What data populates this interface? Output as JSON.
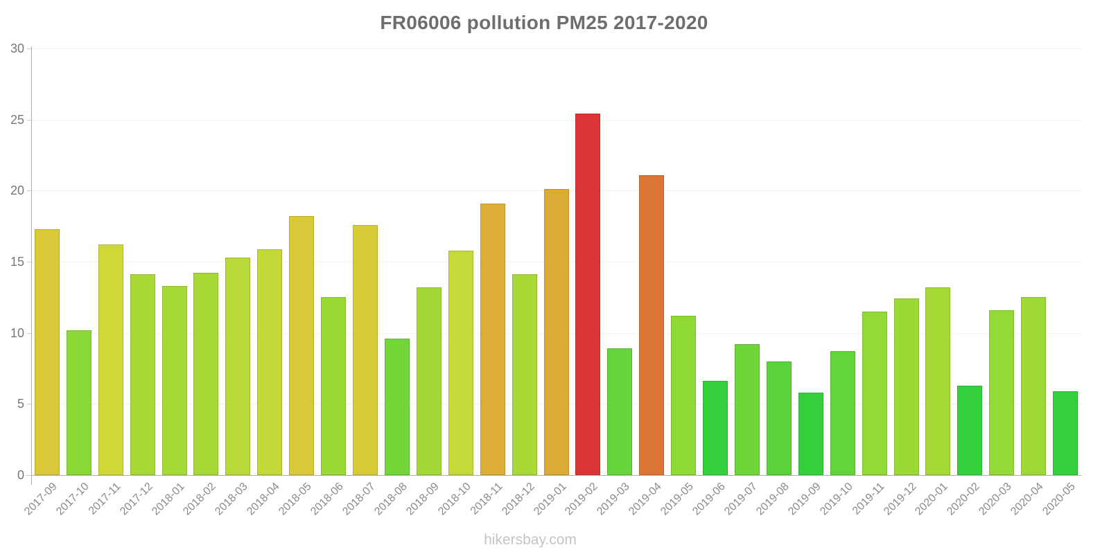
{
  "title": "FR06006 pollution PM25 2017-2020",
  "watermark": "hikersbay.com",
  "chart_data": {
    "type": "bar",
    "title": "FR06006 pollution PM25 2017-2020",
    "xlabel": "",
    "ylabel": "",
    "ylim": [
      0,
      30
    ],
    "yticks": [
      0,
      5,
      10,
      15,
      20,
      25,
      30
    ],
    "grid": true,
    "legend": false,
    "categories": [
      "2017-09",
      "2017-10",
      "2017-11",
      "2017-12",
      "2018-01",
      "2018-02",
      "2018-03",
      "2018-04",
      "2018-05",
      "2018-06",
      "2018-07",
      "2018-08",
      "2018-09",
      "2018-10",
      "2018-11",
      "2018-12",
      "2019-01",
      "2019-02",
      "2019-03",
      "2019-04",
      "2019-05",
      "2019-06",
      "2019-07",
      "2019-08",
      "2019-09",
      "2019-10",
      "2019-11",
      "2019-12",
      "2020-01",
      "2020-02",
      "2020-03",
      "2020-04",
      "2020-05"
    ],
    "values": [
      17.3,
      10.2,
      16.2,
      14.1,
      13.3,
      14.2,
      15.3,
      15.9,
      18.2,
      12.5,
      17.6,
      9.6,
      13.2,
      15.8,
      19.1,
      14.1,
      20.1,
      25.4,
      8.9,
      21.1,
      11.2,
      6.6,
      9.2,
      8.0,
      5.8,
      8.7,
      11.5,
      12.4,
      13.2,
      6.3,
      11.6,
      12.5,
      5.9
    ],
    "bar_colors": [
      "#d9c837",
      "#8ad936",
      "#d0d838",
      "#a9d936",
      "#a4d936",
      "#a9d936",
      "#b9d938",
      "#c4d938",
      "#d9c837",
      "#9cd936",
      "#d9cb38",
      "#72d638",
      "#a3d936",
      "#c6d93a",
      "#dcae36",
      "#a9d936",
      "#dcab34",
      "#d93535",
      "#66d53a",
      "#dc7434",
      "#90da36",
      "#33d03c",
      "#6ed638",
      "#5ad43a",
      "#33d03c",
      "#62d53a",
      "#92da36",
      "#9dd936",
      "#a4d936",
      "#33d03c",
      "#94da36",
      "#9fd936",
      "#33d03c"
    ],
    "color_meaning": "low values green, mid yellow-green/yellow, high orange, highest red"
  },
  "colors": {
    "title_text": "#6e6e6e",
    "axis_line": "#adadad",
    "tick_label": "#777777",
    "x_label": "#8a8a8a",
    "gridline": "#f2f2f2",
    "watermark": "#c4c4c4",
    "background": "#ffffff"
  }
}
